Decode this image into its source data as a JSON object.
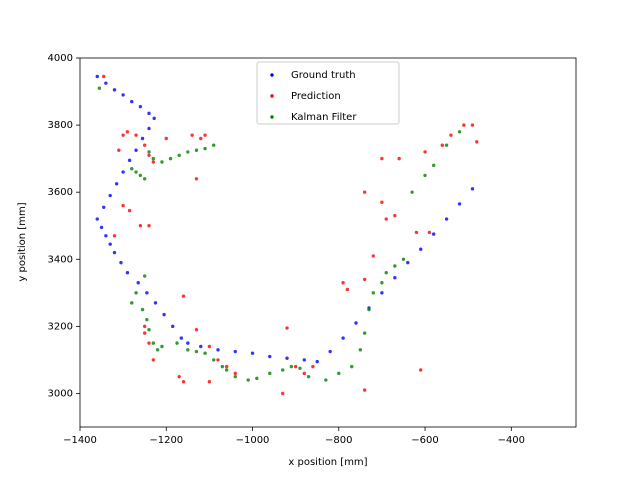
{
  "chart_data": {
    "type": "scatter",
    "x_label": "x position [mm]",
    "y_label": "y position [mm]",
    "xlim": [
      -1400,
      -250
    ],
    "ylim": [
      2900,
      4000
    ],
    "xticks": [
      {
        "value": -1400,
        "label": "−1400"
      },
      {
        "value": -1200,
        "label": "−1200"
      },
      {
        "value": -1000,
        "label": "−1000"
      },
      {
        "value": -800,
        "label": "−800"
      },
      {
        "value": -600,
        "label": "−600"
      },
      {
        "value": -400,
        "label": "−400"
      }
    ],
    "yticks": [
      3000,
      3200,
      3400,
      3600,
      3800,
      4000
    ],
    "grid": false,
    "legend": "upper center",
    "series": [
      {
        "name": "Ground truth",
        "color": "#0000ff",
        "x": [
          -1360,
          -1340,
          -1320,
          -1300,
          -1280,
          -1260,
          -1240,
          -1228,
          -1240,
          -1255,
          -1270,
          -1285,
          -1300,
          -1315,
          -1330,
          -1345,
          -1360,
          -1350,
          -1340,
          -1330,
          -1320,
          -1305,
          -1290,
          -1265,
          -1245,
          -1225,
          -1205,
          -1185,
          -1165,
          -1150,
          -1120,
          -1080,
          -1040,
          -1000,
          -960,
          -920,
          -880,
          -850,
          -820,
          -790,
          -760,
          -730,
          -700,
          -670,
          -640,
          -610,
          -580,
          -550,
          -520,
          -490
        ],
        "y": [
          3945,
          3925,
          3905,
          3890,
          3870,
          3855,
          3835,
          3820,
          3790,
          3760,
          3725,
          3695,
          3660,
          3625,
          3590,
          3555,
          3520,
          3495,
          3470,
          3445,
          3420,
          3390,
          3360,
          3330,
          3300,
          3270,
          3235,
          3200,
          3165,
          3150,
          3140,
          3130,
          3125,
          3120,
          3110,
          3105,
          3100,
          3095,
          3125,
          3165,
          3210,
          3255,
          3300,
          3345,
          3390,
          3430,
          3475,
          3520,
          3565,
          3610
        ]
      },
      {
        "name": "Prediction",
        "color": "#ff0000",
        "x": [
          -1345,
          -1310,
          -1300,
          -1290,
          -1270,
          -1250,
          -1240,
          -1230,
          -1200,
          -1140,
          -1120,
          -1110,
          -1130,
          -1300,
          -1285,
          -1260,
          -1240,
          -1320,
          -1250,
          -1240,
          -1160,
          -1250,
          -1230,
          -1170,
          -1130,
          -1100,
          -1080,
          -1060,
          -1040,
          -1160,
          -1100,
          -930,
          -920,
          -900,
          -880,
          -860,
          -790,
          -780,
          -740,
          -740,
          -740,
          -700,
          -700,
          -720,
          -690,
          -670,
          -660,
          -620,
          -600,
          -560,
          -540,
          -510,
          -490,
          -480,
          -610,
          -590
        ],
        "y": [
          3945,
          3725,
          3770,
          3780,
          3770,
          3740,
          3710,
          3690,
          3760,
          3770,
          3760,
          3770,
          3640,
          3560,
          3545,
          3500,
          3500,
          3470,
          3200,
          3150,
          3290,
          3180,
          3100,
          3050,
          3190,
          3140,
          3100,
          3080,
          3060,
          3035,
          3035,
          3000,
          3195,
          3080,
          3060,
          3080,
          3330,
          3310,
          3340,
          3600,
          3010,
          3570,
          3700,
          3410,
          3520,
          3530,
          3700,
          3480,
          3720,
          3740,
          3770,
          3800,
          3800,
          3750,
          3070,
          3480
        ]
      },
      {
        "name": "Kalman Filter",
        "color": "#008000",
        "x": [
          -1355,
          -1280,
          -1270,
          -1260,
          -1250,
          -1240,
          -1230,
          -1210,
          -1190,
          -1170,
          -1150,
          -1130,
          -1110,
          -1090,
          -1250,
          -1270,
          -1280,
          -1255,
          -1245,
          -1240,
          -1230,
          -1220,
          -1210,
          -1175,
          -1150,
          -1130,
          -1110,
          -1090,
          -1070,
          -1060,
          -1040,
          -1010,
          -990,
          -960,
          -930,
          -910,
          -890,
          -870,
          -830,
          -800,
          -770,
          -750,
          -740,
          -730,
          -720,
          -700,
          -690,
          -670,
          -650,
          -630,
          -600,
          -580,
          -550,
          -520
        ],
        "y": [
          3910,
          3670,
          3660,
          3650,
          3640,
          3720,
          3700,
          3690,
          3700,
          3710,
          3720,
          3725,
          3730,
          3740,
          3350,
          3300,
          3270,
          3250,
          3220,
          3190,
          3150,
          3130,
          3140,
          3150,
          3130,
          3125,
          3120,
          3100,
          3080,
          3070,
          3050,
          3040,
          3045,
          3060,
          3070,
          3080,
          3075,
          3050,
          3040,
          3060,
          3080,
          3130,
          3180,
          3250,
          3300,
          3330,
          3360,
          3380,
          3400,
          3600,
          3650,
          3680,
          3740,
          3780
        ]
      }
    ]
  }
}
